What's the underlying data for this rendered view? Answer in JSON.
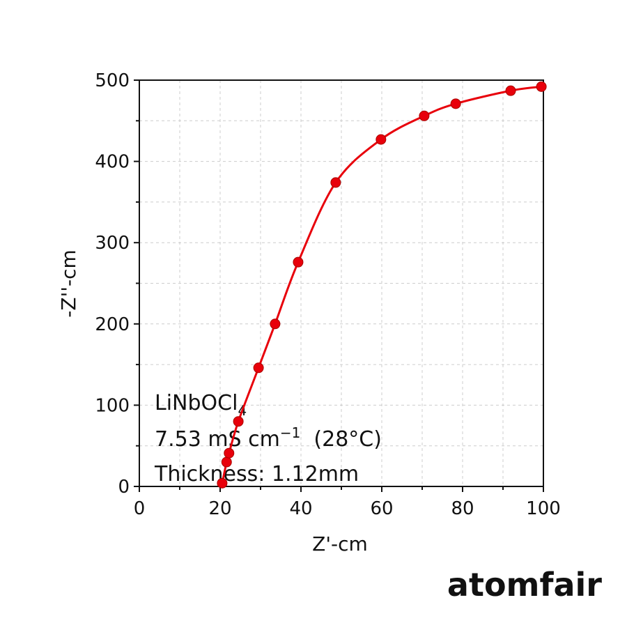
{
  "chart_data": {
    "type": "scatter",
    "x_label": "Z'-cm",
    "y_label": "-Z''-cm",
    "xlim": [
      0,
      100
    ],
    "xticks": [
      0,
      20,
      40,
      60,
      80,
      100
    ],
    "xminorticks": [
      10,
      30,
      50,
      70,
      90
    ],
    "ylim": [
      0,
      500
    ],
    "yticks": [
      0,
      100,
      200,
      300,
      400,
      500
    ],
    "yminorticks": [
      50,
      150,
      250,
      350,
      450
    ],
    "grid": true,
    "series": [
      {
        "color": "#e8000b",
        "x": [
          20.5,
          21.6,
          22.2,
          24.5,
          29.5,
          33.6,
          39.3,
          48.6,
          59.8,
          70.5,
          78.3,
          91.9,
          99.5
        ],
        "values": [
          4,
          30,
          41,
          80,
          146,
          200,
          276,
          374,
          427,
          456,
          471,
          487,
          492
        ]
      }
    ],
    "annotations": [
      {
        "text": "LiNbOCl",
        "sub": "4"
      },
      {
        "text": "7.53 mS cm",
        "sup": "−1",
        "tail": "  (28°C)"
      },
      {
        "text": "Thickness: 1.12mm"
      }
    ],
    "watermark": "atomfair"
  }
}
